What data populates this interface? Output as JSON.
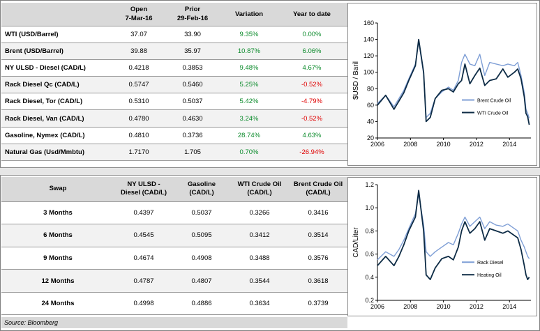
{
  "top_table": {
    "headers": [
      "",
      "Open\n7-Mar-16",
      "Prior\n29-Feb-16",
      "Variation",
      "Year to date"
    ],
    "header_open": "Open",
    "header_open_date": "7-Mar-16",
    "header_prior": "Prior",
    "header_prior_date": "29-Feb-16",
    "header_variation": "Variation",
    "header_ytd": "Year to date",
    "rows": [
      {
        "label": "WTI (USD/Barrel)",
        "open": "37.07",
        "prior": "33.90",
        "variation": "9.35%",
        "ytd": "0.00%",
        "ytd_sign": "zero"
      },
      {
        "label": "Brent (USD/Barrel)",
        "open": "39.88",
        "prior": "35.97",
        "variation": "10.87%",
        "ytd": "6.06%",
        "ytd_sign": "pos"
      },
      {
        "label": "NY ULSD - Diesel (CAD/L)",
        "open": "0.4218",
        "prior": "0.3853",
        "variation": "9.48%",
        "ytd": "4.67%",
        "ytd_sign": "pos"
      },
      {
        "label": "Rack Diesel Qc (CAD/L)",
        "open": "0.5747",
        "prior": "0.5460",
        "variation": "5.25%",
        "ytd": "-0.52%",
        "ytd_sign": "neg"
      },
      {
        "label": "Rack Diesel, Tor (CAD/L)",
        "open": "0.5310",
        "prior": "0.5037",
        "variation": "5.42%",
        "ytd": "-4.79%",
        "ytd_sign": "neg"
      },
      {
        "label": "Rack Diesel, Van (CAD/L)",
        "open": "0.4780",
        "prior": "0.4630",
        "variation": "3.24%",
        "ytd": "-0.52%",
        "ytd_sign": "neg"
      },
      {
        "label": "Gasoline, Nymex (CAD/L)",
        "open": "0.4810",
        "prior": "0.3736",
        "variation": "28.74%",
        "ytd": "4.63%",
        "ytd_sign": "pos"
      },
      {
        "label": "Natural Gas (Usd/Mmbtu)",
        "open": "1.7170",
        "prior": "1.705",
        "variation": "0.70%",
        "ytd": "-26.94%",
        "ytd_sign": "neg"
      }
    ]
  },
  "swap_table": {
    "header_swap": "Swap",
    "header_ulsd_1": "NY ULSD -",
    "header_ulsd_2": "Diesel (CAD/L)",
    "header_gasoline_1": "Gasoline",
    "header_gasoline_2": "(CAD/L)",
    "header_wti_1": "WTI Crude Oil",
    "header_wti_2": "(CAD/L)",
    "header_brent_1": "Brent Crude Oil",
    "header_brent_2": "(CAD/L)",
    "rows": [
      {
        "label": "3 Months",
        "ulsd": "0.4397",
        "gasoline": "0.5037",
        "wti": "0.3266",
        "brent": "0.3416"
      },
      {
        "label": "6 Months",
        "ulsd": "0.4545",
        "gasoline": "0.5095",
        "wti": "0.3412",
        "brent": "0.3514"
      },
      {
        "label": "9 Months",
        "ulsd": "0.4674",
        "gasoline": "0.4908",
        "wti": "0.3488",
        "brent": "0.3576"
      },
      {
        "label": "12 Months",
        "ulsd": "0.4787",
        "gasoline": "0.4807",
        "wti": "0.3544",
        "brent": "0.3618"
      },
      {
        "label": "24 Months",
        "ulsd": "0.4998",
        "gasoline": "0.4886",
        "wti": "0.3634",
        "brent": "0.3739"
      }
    ]
  },
  "source": "Source: Bloomberg",
  "colors": {
    "positive": "#0a8a2a",
    "negative": "#e00000",
    "series_light": "#7f9fd6",
    "series_dark": "#0d2b45"
  },
  "chart_data": [
    {
      "type": "line",
      "title": "",
      "xlabel": "",
      "ylabel": "$USD / Baril",
      "xlim": [
        2006,
        2015.3
      ],
      "ylim": [
        20,
        160
      ],
      "xticks": [
        2006,
        2008,
        2010,
        2012,
        2014
      ],
      "yticks": [
        20,
        40,
        60,
        80,
        100,
        120,
        140,
        160
      ],
      "legend_position": "lower-right",
      "series": [
        {
          "name": "Brent Crude Oil",
          "color": "#7f9fd6",
          "x": [
            2006.0,
            2006.5,
            2007.0,
            2007.3,
            2007.6,
            2007.9,
            2008.3,
            2008.5,
            2008.8,
            2008.95,
            2009.2,
            2009.5,
            2009.9,
            2010.3,
            2010.6,
            2010.9,
            2011.1,
            2011.3,
            2011.6,
            2011.9,
            2012.2,
            2012.5,
            2012.8,
            2013.2,
            2013.6,
            2013.9,
            2014.3,
            2014.5,
            2014.7,
            2014.9,
            2015.0,
            2015.1,
            2015.2
          ],
          "y": [
            62,
            72,
            58,
            68,
            78,
            92,
            110,
            138,
            98,
            45,
            50,
            68,
            76,
            82,
            78,
            90,
            112,
            122,
            110,
            108,
            122,
            96,
            112,
            110,
            108,
            110,
            108,
            112,
            96,
            75,
            55,
            50,
            44
          ]
        },
        {
          "name": "WTI Crude Oil",
          "color": "#0d2b45",
          "x": [
            2006.0,
            2006.5,
            2007.0,
            2007.3,
            2007.6,
            2007.9,
            2008.3,
            2008.5,
            2008.8,
            2008.95,
            2009.2,
            2009.5,
            2009.9,
            2010.3,
            2010.6,
            2010.9,
            2011.1,
            2011.3,
            2011.6,
            2011.9,
            2012.2,
            2012.5,
            2012.8,
            2013.2,
            2013.6,
            2013.9,
            2014.3,
            2014.5,
            2014.7,
            2014.9,
            2015.0,
            2015.1,
            2015.2
          ],
          "y": [
            60,
            72,
            55,
            65,
            75,
            90,
            108,
            140,
            100,
            40,
            45,
            68,
            78,
            80,
            76,
            86,
            90,
            110,
            86,
            96,
            105,
            84,
            90,
            92,
            104,
            94,
            100,
            104,
            92,
            70,
            50,
            46,
            36
          ]
        }
      ]
    },
    {
      "type": "line",
      "title": "",
      "xlabel": "",
      "ylabel": "CAD/Liter",
      "xlim": [
        2006,
        2015.3
      ],
      "ylim": [
        0.2,
        1.2
      ],
      "xticks": [
        2006,
        2008,
        2010,
        2012,
        2014
      ],
      "yticks": [
        0.2,
        0.4,
        0.6,
        0.8,
        1.0,
        1.2
      ],
      "legend_position": "lower-right",
      "series": [
        {
          "name": "Rack Diesel",
          "color": "#7f9fd6",
          "x": [
            2006.0,
            2006.5,
            2007.0,
            2007.3,
            2007.6,
            2007.9,
            2008.3,
            2008.5,
            2008.8,
            2008.95,
            2009.2,
            2009.5,
            2009.9,
            2010.3,
            2010.6,
            2010.9,
            2011.1,
            2011.3,
            2011.6,
            2011.9,
            2012.2,
            2012.5,
            2012.8,
            2013.2,
            2013.6,
            2013.9,
            2014.3,
            2014.5,
            2014.7,
            2014.9,
            2015.0,
            2015.1,
            2015.2
          ],
          "y": [
            0.55,
            0.62,
            0.58,
            0.64,
            0.72,
            0.82,
            0.95,
            1.12,
            0.85,
            0.62,
            0.58,
            0.62,
            0.66,
            0.7,
            0.68,
            0.78,
            0.86,
            0.92,
            0.84,
            0.88,
            0.92,
            0.82,
            0.88,
            0.85,
            0.84,
            0.86,
            0.82,
            0.8,
            0.72,
            0.66,
            0.62,
            0.58,
            0.56
          ]
        },
        {
          "name": "Heating Oil",
          "color": "#0d2b45",
          "x": [
            2006.0,
            2006.5,
            2007.0,
            2007.3,
            2007.6,
            2007.9,
            2008.3,
            2008.5,
            2008.8,
            2008.95,
            2009.2,
            2009.5,
            2009.9,
            2010.3,
            2010.6,
            2010.9,
            2011.1,
            2011.3,
            2011.6,
            2011.9,
            2012.2,
            2012.5,
            2012.8,
            2013.2,
            2013.6,
            2013.9,
            2014.3,
            2014.5,
            2014.7,
            2014.9,
            2015.0,
            2015.1,
            2015.2
          ],
          "y": [
            0.5,
            0.58,
            0.5,
            0.58,
            0.68,
            0.8,
            0.92,
            1.15,
            0.8,
            0.42,
            0.38,
            0.48,
            0.56,
            0.58,
            0.55,
            0.66,
            0.8,
            0.88,
            0.78,
            0.82,
            0.88,
            0.72,
            0.82,
            0.8,
            0.78,
            0.8,
            0.76,
            0.74,
            0.64,
            0.5,
            0.42,
            0.38,
            0.4
          ]
        }
      ]
    }
  ]
}
